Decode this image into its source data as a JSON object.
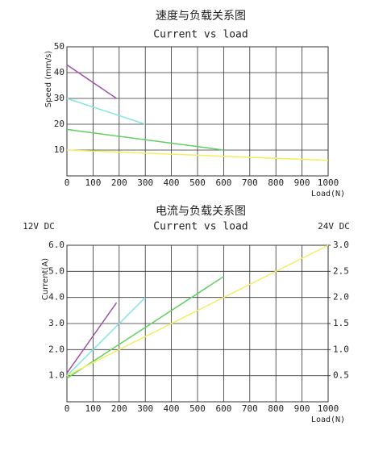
{
  "chart_data": [
    {
      "type": "line",
      "title": "速度与负载关系图",
      "subtitle": "Current vs load",
      "ylabel": "Speed (mm/s)",
      "xlabel": "Load(N)",
      "xlim": [
        0,
        1000
      ],
      "xticks": [
        0,
        100,
        200,
        300,
        400,
        500,
        600,
        700,
        800,
        900,
        1000
      ],
      "ylim": [
        0,
        50
      ],
      "yticks": [
        10,
        20,
        30,
        40,
        50
      ],
      "grid": true,
      "series": [
        {
          "color": "#a050a8",
          "x": [
            0,
            190
          ],
          "values": [
            43,
            30
          ]
        },
        {
          "color": "#80e8e0",
          "x": [
            0,
            300
          ],
          "values": [
            30,
            20
          ]
        },
        {
          "color": "#60d060",
          "x": [
            0,
            600
          ],
          "values": [
            18,
            10
          ]
        },
        {
          "color": "#f0f060",
          "x": [
            0,
            1000
          ],
          "values": [
            10,
            6
          ]
        }
      ]
    },
    {
      "type": "line",
      "title": "电流与负载关系图",
      "subtitle": "Current vs load",
      "annotations": [
        "12V DC",
        "24V DC"
      ],
      "ylabel": "Current(A)",
      "xlabel": "Load(N)",
      "xlim": [
        0,
        1000
      ],
      "xticks": [
        0,
        100,
        200,
        300,
        400,
        500,
        600,
        700,
        800,
        900,
        1000
      ],
      "ylim": [
        0,
        6
      ],
      "yticks": [
        {
          "value": 1,
          "label": "1.0"
        },
        {
          "value": 2,
          "label": "2.0"
        },
        {
          "value": 3,
          "label": "3.0"
        },
        {
          "value": 4,
          "label": "4.0"
        },
        {
          "value": 5,
          "label": "5.0"
        },
        {
          "value": 6,
          "label": "6.0"
        }
      ],
      "y2lim": [
        0,
        3
      ],
      "y2ticks": [
        0.5,
        {
          "value": 1,
          "label": "1.0"
        },
        1.5,
        {
          "value": 2,
          "label": "2.0"
        },
        2.5,
        {
          "value": 3,
          "label": "3.0"
        }
      ],
      "grid": true,
      "series": [
        {
          "color": "#a050a8",
          "x": [
            0,
            190
          ],
          "values": [
            1.1,
            3.8
          ]
        },
        {
          "color": "#80e8e0",
          "x": [
            0,
            300
          ],
          "values": [
            1.0,
            4.0
          ]
        },
        {
          "color": "#60d060",
          "x": [
            0,
            600
          ],
          "values": [
            0.9,
            4.8
          ]
        },
        {
          "color": "#f0f060",
          "axis": "y2",
          "x": [
            0,
            1000
          ],
          "values": [
            0.5,
            3.0
          ]
        }
      ]
    }
  ]
}
